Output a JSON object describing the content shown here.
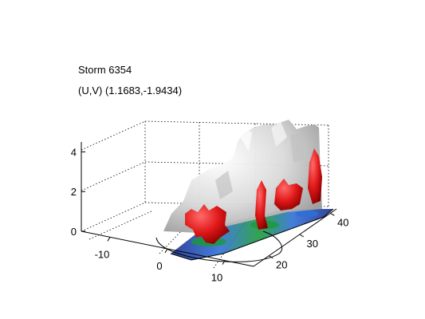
{
  "chart_data": {
    "type": "surface3d",
    "title": "Storm 6354",
    "subtitle": "(U,V) (1.1683,-1.9434)",
    "z_ticks": [
      "0",
      "2",
      "4"
    ],
    "x_ticks": [
      "-10",
      "0",
      "10"
    ],
    "y_ticks": [
      "20",
      "30",
      "40"
    ],
    "xlim": [
      -15,
      15
    ],
    "ylim": [
      15,
      42
    ],
    "zlim": [
      0,
      4.5
    ],
    "grid": true,
    "series": [
      {
        "color": "#d8d8d8"
      },
      {
        "color": "#e01818"
      }
    ],
    "colors": {
      "isosurface_gray": "#d8d8d8",
      "isosurface_red": "#e01818",
      "floor_high": "#1a9a3a",
      "floor_mid": "#2f6fd6",
      "floor_low": "#1b2f8f",
      "axis": "#000000",
      "grid": "#000000"
    }
  }
}
